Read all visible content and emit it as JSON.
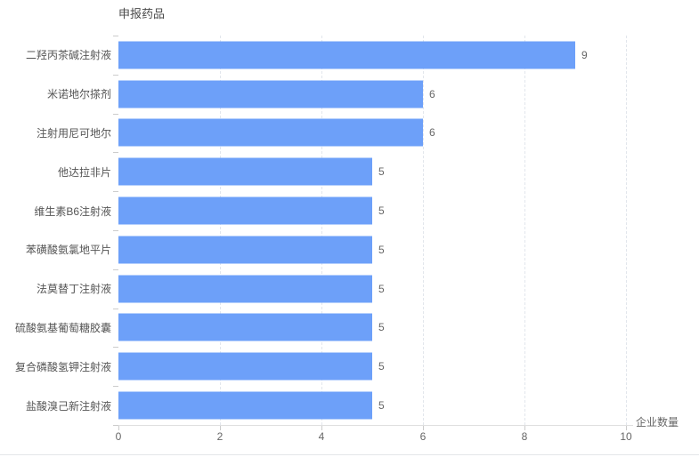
{
  "chart_data": {
    "type": "bar",
    "orientation": "horizontal",
    "title": "申报药品",
    "xlabel": "企业数量",
    "categories": [
      "二羟丙茶碱注射液",
      "米诺地尔搽剂",
      "注射用尼可地尔",
      "他达拉非片",
      "维生素B6注射液",
      "苯磺酸氨氯地平片",
      "法莫替丁注射液",
      "硫酸氨基葡萄糖胶囊",
      "复合磷酸氢钾注射液",
      "盐酸溴己新注射液"
    ],
    "values": [
      9,
      6,
      6,
      5,
      5,
      5,
      5,
      5,
      5,
      5
    ],
    "value_labels": [
      "9",
      "6",
      "6",
      "5",
      "5",
      "5",
      "5",
      "5",
      "5",
      "5"
    ],
    "xlim": [
      0,
      10
    ],
    "xticks": [
      0,
      2,
      4,
      6,
      8,
      10
    ],
    "xtick_labels": [
      "0",
      "2",
      "4",
      "6",
      "8",
      "10"
    ],
    "grid": "vertical-dashed",
    "legend": "none",
    "colors": {
      "bar": "#6DA0F9",
      "gridline": "#E2E6EC",
      "axis_line": "#E0E0E0",
      "tick": "#CCCCCC",
      "tick_text": "#666666",
      "category_text": "#555555",
      "title_text": "#4A4A4A",
      "background": "#FFFFFF"
    }
  }
}
